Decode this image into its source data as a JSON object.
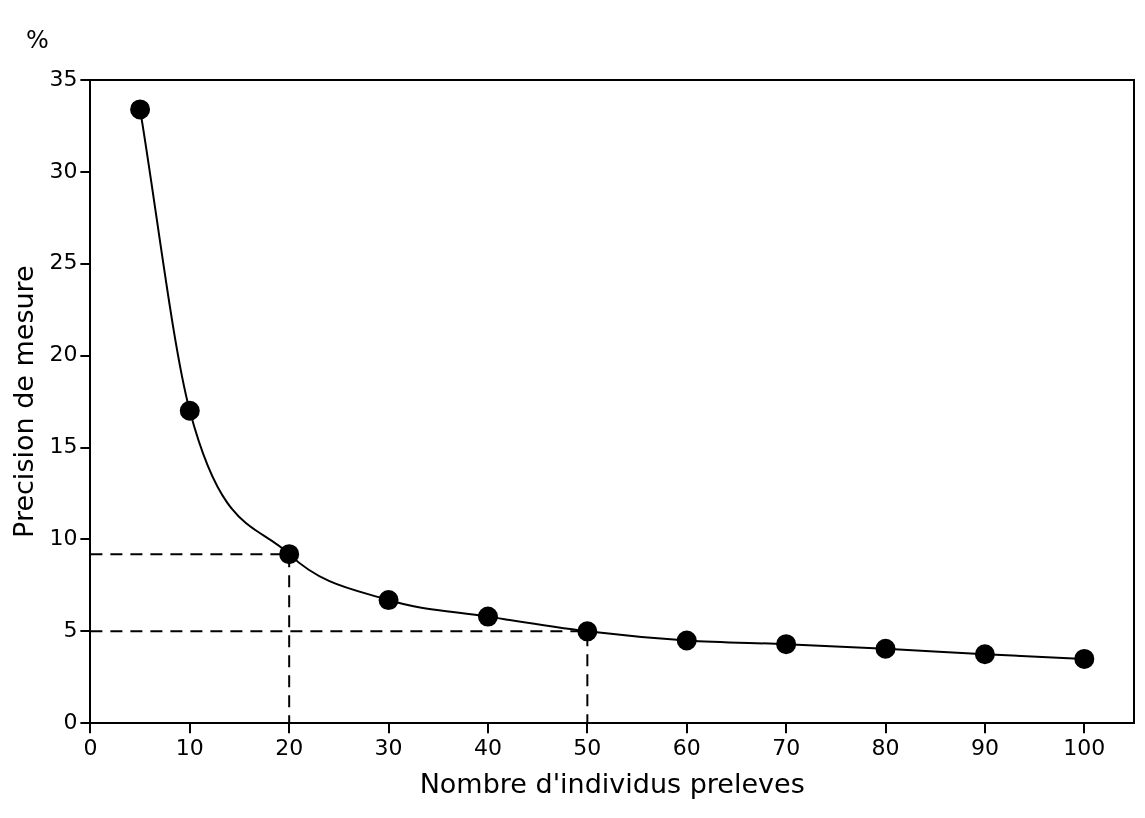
{
  "chart_data": {
    "type": "line",
    "xlabel": "Nombre d'individus preleves",
    "ylabel": "Precision de mesure",
    "annotations": [
      "%"
    ],
    "xlim": [
      0,
      105
    ],
    "xticks": [
      0,
      10,
      20,
      30,
      40,
      50,
      60,
      70,
      80,
      90,
      100
    ],
    "ylim": [
      0,
      35
    ],
    "yticks": [
      0,
      5,
      10,
      15,
      20,
      25,
      30,
      35
    ],
    "grid": false,
    "legend": false,
    "series": [
      {
        "color": "#000000",
        "marker": "circle",
        "line_style": "solid",
        "x": [
          5,
          10,
          20,
          30,
          40,
          50,
          60,
          70,
          80,
          90,
          100
        ],
        "values": [
          33.4,
          17.0,
          9.2,
          6.7,
          5.8,
          5.0,
          4.5,
          4.3,
          4.05,
          3.75,
          3.5
        ]
      },
      {
        "color": "#000000",
        "marker": "none",
        "line_style": "dashed",
        "x": [
          0,
          20,
          20
        ],
        "values": [
          9.2,
          9.2,
          0
        ]
      },
      {
        "color": "#000000",
        "marker": "none",
        "line_style": "dashed",
        "x": [
          0,
          50,
          50
        ],
        "values": [
          5.0,
          5.0,
          0
        ]
      }
    ]
  }
}
